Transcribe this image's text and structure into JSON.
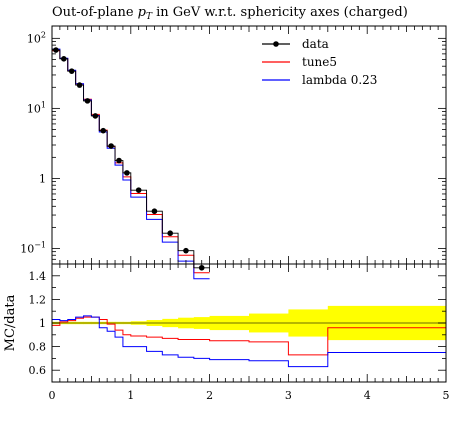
{
  "chart_data": [
    {
      "type": "line",
      "title": "Out-of-plane p_T in GeV w.r.t. sphericity axes (charged)",
      "title_parts": {
        "pre": "Out-of-plane ",
        "var": "p",
        "sub": "T",
        "post": " in GeV w.r.t. sphericity axes (charged)"
      },
      "yscale": "log",
      "ylim": [
        0.06,
        150
      ],
      "xlim": [
        0,
        5
      ],
      "ytick_labels": [
        {
          "value": 100,
          "base": "10",
          "exp": "2"
        },
        {
          "value": 10,
          "base": "10",
          "exp": "1"
        },
        {
          "value": 1,
          "base": "1",
          "exp": ""
        },
        {
          "value": 0.1,
          "base": "10",
          "exp": "−1"
        }
      ],
      "legend_position": "top-right",
      "legend": [
        {
          "label": "data",
          "color": "#000000",
          "marker": "dot"
        },
        {
          "label": "tune5",
          "color": "#ff0000",
          "marker": "line"
        },
        {
          "label": "lambda 0.23",
          "color": "#0000ff",
          "marker": "line"
        }
      ],
      "data_points": {
        "x": [
          0.05,
          0.15,
          0.25,
          0.35,
          0.45,
          0.55,
          0.65,
          0.75,
          0.85,
          0.95,
          1.1,
          1.3,
          1.5,
          1.7,
          1.9
        ],
        "y": [
          68,
          51,
          34,
          21.5,
          12.8,
          7.8,
          4.8,
          2.9,
          1.8,
          1.2,
          0.68,
          0.34,
          0.165,
          0.093,
          0.053
        ]
      },
      "bin_edges": [
        0,
        0.1,
        0.2,
        0.3,
        0.4,
        0.5,
        0.6,
        0.7,
        0.8,
        0.9,
        1.0,
        1.2,
        1.4,
        1.6,
        1.8,
        2.0
      ],
      "series": [
        {
          "name": "data",
          "values": [
            68,
            51,
            34,
            21.5,
            12.8,
            7.8,
            4.8,
            2.9,
            1.8,
            1.2,
            0.68,
            0.34,
            0.165,
            0.093,
            0.053
          ]
        },
        {
          "name": "tune5",
          "values": [
            66.5,
            51.5,
            34.5,
            22.4,
            13.5,
            8.2,
            4.9,
            2.85,
            1.67,
            1.05,
            0.61,
            0.305,
            0.147,
            0.08,
            0.045
          ]
        },
        {
          "name": "lambda 0.23",
          "values": [
            70,
            52,
            35,
            22.5,
            13.2,
            7.9,
            4.6,
            2.7,
            1.55,
            0.95,
            0.54,
            0.26,
            0.123,
            0.066,
            0.037
          ]
        }
      ]
    },
    {
      "type": "line",
      "ylabel": "MC/data",
      "ylim": [
        0.5,
        1.5
      ],
      "xlim": [
        0,
        5
      ],
      "yticks": [
        0.6,
        0.8,
        1,
        1.2,
        1.4
      ],
      "ytick_labels": [
        "0.6",
        "0.8",
        "1",
        "1.2",
        "1.4"
      ],
      "xticks": [
        0,
        1,
        2,
        3,
        4,
        5
      ],
      "xtick_labels": [
        "0",
        "1",
        "2",
        "3",
        "4",
        "5"
      ],
      "reference_line": 1,
      "ratio_bin_edges": [
        0,
        0.1,
        0.2,
        0.3,
        0.4,
        0.5,
        0.6,
        0.7,
        0.8,
        0.9,
        1.0,
        1.2,
        1.4,
        1.6,
        1.8,
        2.0,
        2.5,
        3.0,
        3.5,
        5.0
      ],
      "uncertainty_band": {
        "color": "#ffff00",
        "low": [
          0.99,
          0.99,
          0.99,
          0.99,
          0.99,
          0.99,
          0.99,
          0.99,
          0.99,
          0.99,
          0.985,
          0.975,
          0.965,
          0.955,
          0.95,
          0.94,
          0.92,
          0.885,
          0.855
        ],
        "high": [
          1.01,
          1.01,
          1.01,
          1.01,
          1.01,
          1.01,
          1.01,
          1.01,
          1.01,
          1.01,
          1.015,
          1.025,
          1.035,
          1.045,
          1.05,
          1.06,
          1.08,
          1.115,
          1.145
        ]
      },
      "series": [
        {
          "name": "tune5",
          "values": [
            0.98,
            1.01,
            1.02,
            1.04,
            1.05,
            1.05,
            1.03,
            0.99,
            0.94,
            0.9,
            0.89,
            0.88,
            0.87,
            0.86,
            0.86,
            0.85,
            0.84,
            0.73,
            0.96
          ]
        },
        {
          "name": "lambda 0.23",
          "values": [
            1.03,
            1.02,
            1.03,
            1.05,
            1.06,
            1.05,
            0.96,
            0.93,
            0.88,
            0.8,
            0.8,
            0.76,
            0.73,
            0.71,
            0.7,
            0.69,
            0.68,
            0.63,
            0.75
          ]
        }
      ]
    }
  ]
}
